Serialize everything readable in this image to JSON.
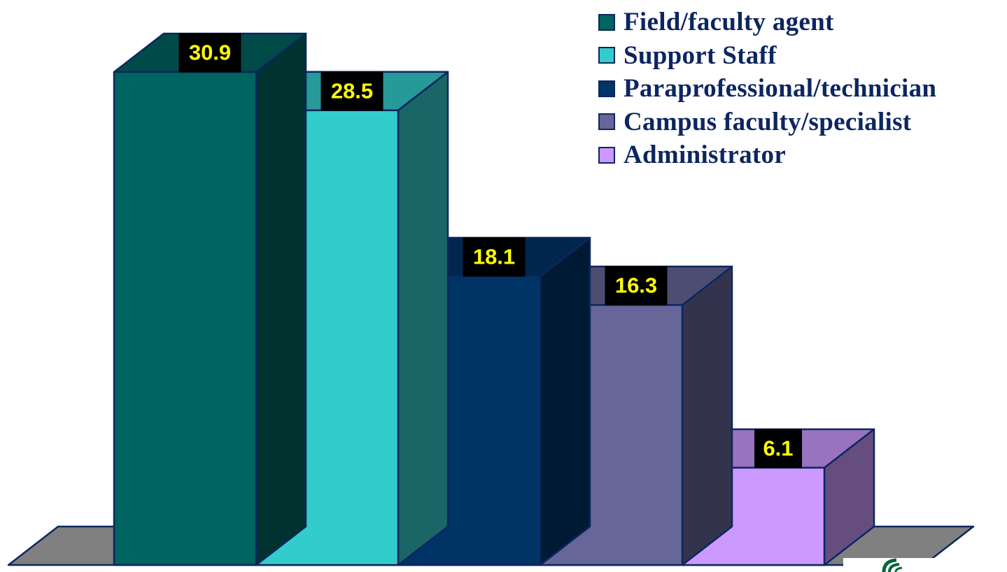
{
  "chart_data": {
    "type": "bar",
    "categories": [
      "Field/faculty agent",
      "Support Staff",
      "Paraprofessional/technician",
      "Campus faculty/specialist",
      "Administrator"
    ],
    "values": [
      30.9,
      28.5,
      18.1,
      16.3,
      6.1
    ],
    "data_labels": [
      "30.9",
      "28.5",
      "18.1",
      "16.3",
      "6.1"
    ],
    "colors": {
      "front": [
        "#006461",
        "#33cccc",
        "#003366",
        "#666699",
        "#cc99ff"
      ],
      "top": [
        "#004b49",
        "#269999",
        "#00264d",
        "#4d4d73",
        "#9973bf"
      ],
      "side": [
        "#003230",
        "#1a6666",
        "#001a33",
        "#33334d",
        "#664d80"
      ],
      "outline": "#0d2660",
      "floor": "#808080",
      "label_bg": "#000000",
      "label_text": "#ffff00"
    },
    "legend_position": "top-right",
    "grid": false,
    "style": "3d-columns",
    "ylim": [
      0,
      30.9
    ]
  },
  "legend": {
    "items": [
      {
        "label": "Field/faculty agent",
        "color": "#006461"
      },
      {
        "label": "Support Staff",
        "color": "#33cccc"
      },
      {
        "label": "Paraprofessional/technician",
        "color": "#003366"
      },
      {
        "label": "Campus faculty/specialist",
        "color": "#666699"
      },
      {
        "label": "Administrator",
        "color": "#cc99ff"
      }
    ]
  }
}
